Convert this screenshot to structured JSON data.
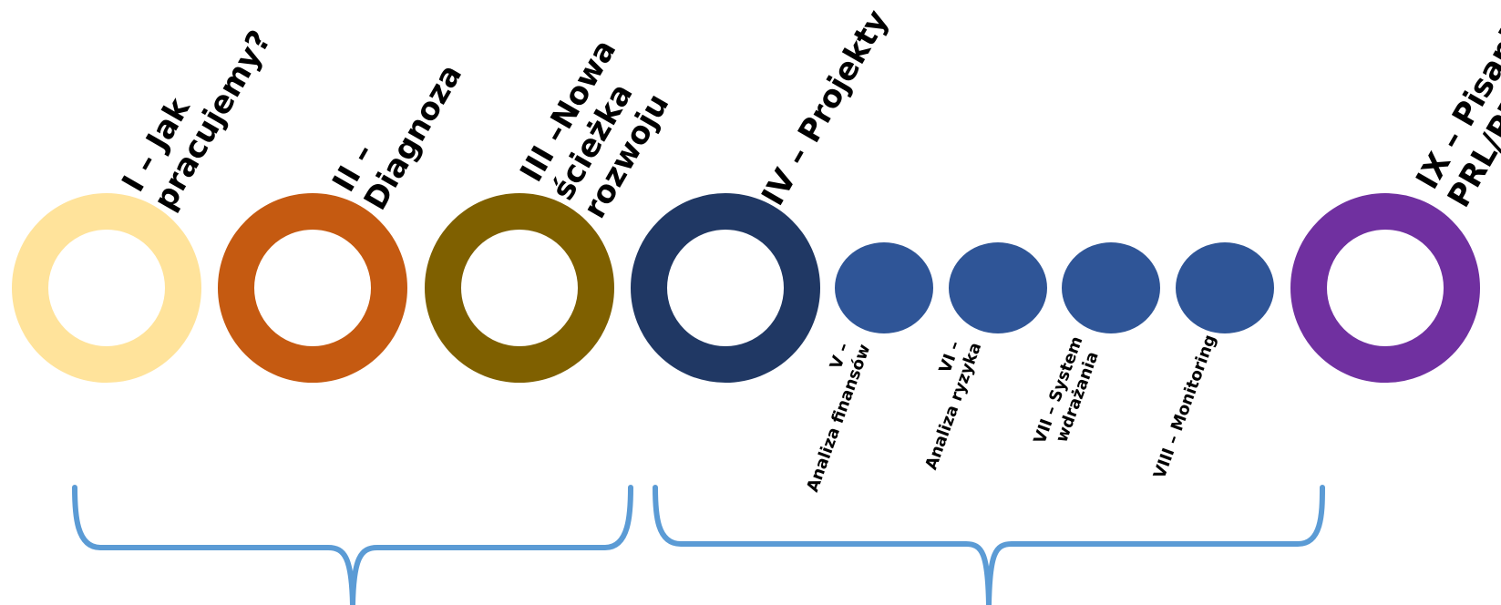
{
  "stages": [
    {
      "id": "s1",
      "label_lines": [
        "I – Jak",
        "pracujemy?"
      ],
      "color": "#FFE39B",
      "kind": "ring"
    },
    {
      "id": "s2",
      "label_lines": [
        "II –",
        "Diagnoza"
      ],
      "color": "#C55A11",
      "kind": "ring"
    },
    {
      "id": "s3",
      "label_lines": [
        "III –Nowa",
        "ścieżka",
        "rozwoju"
      ],
      "color": "#7F6000",
      "kind": "ring"
    },
    {
      "id": "s4",
      "label_lines": [
        "IV – Projekty"
      ],
      "color": "#203864",
      "kind": "ring"
    },
    {
      "id": "s5",
      "label_lines": [
        "V –",
        "Analiza finansów"
      ],
      "color": "#2F5597",
      "kind": "dot"
    },
    {
      "id": "s6",
      "label_lines": [
        "VI –",
        "Analiza ryzyka"
      ],
      "color": "#2F5597",
      "kind": "dot"
    },
    {
      "id": "s7",
      "label_lines": [
        "VII – System",
        "wdrażania"
      ],
      "color": "#2F5597",
      "kind": "dot"
    },
    {
      "id": "s8",
      "label_lines": [
        "VIII – Monitoring"
      ],
      "color": "#2F5597",
      "kind": "dot"
    },
    {
      "id": "s9",
      "label_lines": [
        "IX – Pisanie",
        "PRL/PRI"
      ],
      "color": "#7030A0",
      "kind": "ring"
    }
  ],
  "brackets": [
    {
      "id": "bracket-left",
      "color": "#5B9BD5"
    },
    {
      "id": "bracket-right",
      "color": "#5B9BD5"
    }
  ]
}
